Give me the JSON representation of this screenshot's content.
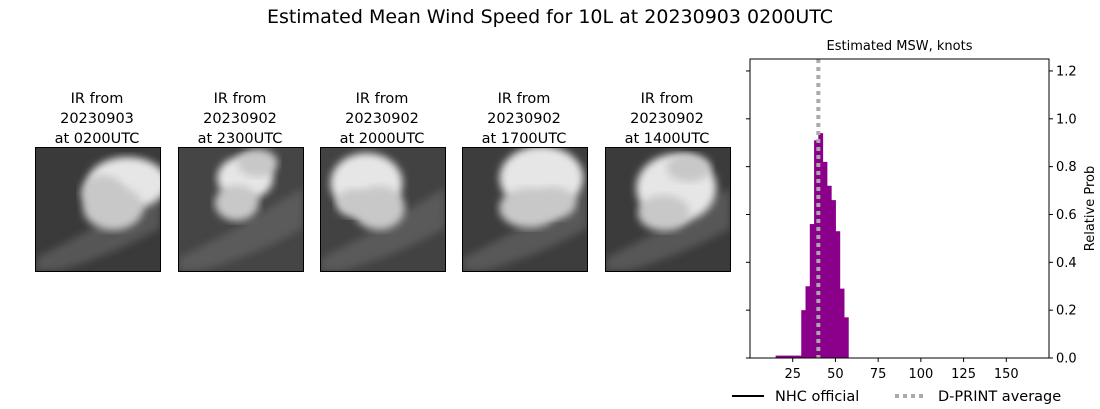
{
  "title": "Estimated Mean Wind Speed for 10L at 20230903 0200UTC",
  "ir_panels": [
    {
      "line1": "IR from",
      "line2": "20230903",
      "line3": "at 0200UTC"
    },
    {
      "line1": "IR from",
      "line2": "20230902",
      "line3": "at 2300UTC"
    },
    {
      "line1": "IR from",
      "line2": "20230902",
      "line3": "at 2000UTC"
    },
    {
      "line1": "IR from",
      "line2": "20230902",
      "line3": "at 1700UTC"
    },
    {
      "line1": "IR from",
      "line2": "20230902",
      "line3": "at 1400UTC"
    }
  ],
  "chart_data": {
    "type": "bar",
    "title": "Estimated MSW, knots",
    "xlabel": "",
    "ylabel": "Relative Prob",
    "xlim": [
      0,
      175
    ],
    "ylim": [
      0,
      1.25
    ],
    "xticks": [
      25,
      50,
      75,
      100,
      125,
      150
    ],
    "yticks": [
      0.0,
      0.2,
      0.4,
      0.6,
      0.8,
      1.0,
      1.2
    ],
    "ytick_labels": [
      "0.0",
      "0.2",
      "0.4",
      "0.6",
      "0.8",
      "1.0",
      "1.2"
    ],
    "bar_width": 2.5,
    "x": [
      15,
      17.5,
      20,
      22.5,
      25,
      27.5,
      30,
      32.5,
      35,
      37.5,
      40,
      42.5,
      45,
      47.5,
      50,
      52.5,
      55
    ],
    "values": [
      0.01,
      0.01,
      0.01,
      0.01,
      0.01,
      0.01,
      0.2,
      0.3,
      0.56,
      0.91,
      0.94,
      0.82,
      0.72,
      0.66,
      0.53,
      0.29,
      0.17
    ],
    "bar_color": "#8b008b",
    "dprint_average": 40,
    "dprint_color": "#aaaaaa",
    "legend": [
      {
        "label": "NHC official",
        "style": "solid",
        "color": "#000000"
      },
      {
        "label": "D-PRINT average",
        "style": "dotted",
        "color": "#aaaaaa"
      }
    ],
    "legend_position": "bottom",
    "y_axis_side": "right"
  }
}
